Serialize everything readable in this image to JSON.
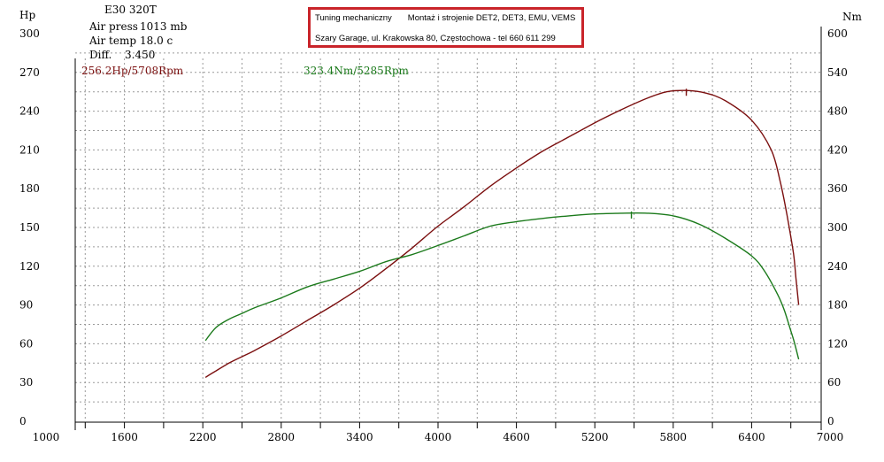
{
  "header": {
    "model": "E30 320T",
    "air_press_label": "Air press",
    "air_press_value": "1013 mb",
    "air_temp_label": "Air temp",
    "air_temp_value": "18.0 c",
    "diff_label": "Diff.",
    "diff_value": "3.450"
  },
  "shop_box": {
    "line1_a": "Tuning mechaniczny",
    "line1_b": "Montaż i strojenie DET2, DET3, EMU, VEMS",
    "line2": "Szary Garage, ul. Krakowska 80, Częstochowa - tel 660 611 299",
    "border_color": "#c9242a"
  },
  "colors": {
    "power": "#7b0f0f",
    "torque": "#1b7a1b",
    "grid": "#9a9a9a"
  },
  "chart_data": {
    "type": "line",
    "x_ticks": [
      "1000",
      "1600",
      "2200",
      "2800",
      "3400",
      "4000",
      "4600",
      "5200",
      "5800",
      "6400",
      "7000"
    ],
    "xlim": [
      1000,
      7000
    ],
    "y_left": {
      "label": "Hp",
      "ticks": [
        "0",
        "30",
        "60",
        "90",
        "120",
        "150",
        "180",
        "210",
        "240",
        "270",
        "300"
      ],
      "lim": [
        0,
        300
      ]
    },
    "y_right": {
      "label": "Nm",
      "ticks": [
        "0",
        "60",
        "120",
        "180",
        "240",
        "300",
        "360",
        "420",
        "480",
        "540",
        "600"
      ],
      "lim": [
        0,
        600
      ]
    },
    "grid": true,
    "peaks": {
      "power": "256.2Hp/5708Rpm",
      "torque": "323.4Nm/5285Rpm"
    },
    "series": [
      {
        "axis": "left",
        "x": [
          2220,
          2300,
          2400,
          2500,
          2600,
          2800,
          3000,
          3200,
          3400,
          3600,
          3800,
          4000,
          4200,
          4400,
          4600,
          4800,
          5000,
          5200,
          5400,
          5600,
          5750,
          5900,
          6050,
          6200,
          6400,
          6550,
          6620,
          6670,
          6720,
          6740,
          6760
        ],
        "values": [
          34,
          39,
          45,
          50,
          55,
          66,
          78,
          90,
          103,
          118,
          134,
          151,
          166,
          182,
          196,
          209,
          220,
          231,
          241,
          250,
          255,
          256,
          254,
          248,
          233,
          210,
          185,
          160,
          130,
          110,
          90
        ]
      },
      {
        "axis": "right",
        "x": [
          2220,
          2300,
          2400,
          2500,
          2600,
          2800,
          3000,
          3200,
          3400,
          3600,
          3800,
          4000,
          4200,
          4400,
          4600,
          4800,
          5000,
          5200,
          5400,
          5600,
          5800,
          6000,
          6200,
          6400,
          6500,
          6600,
          6650,
          6700,
          6730,
          6760
        ],
        "values": [
          125,
          145,
          158,
          167,
          176,
          191,
          208,
          220,
          232,
          247,
          258,
          272,
          287,
          302,
          309,
          314,
          318,
          321,
          322,
          322,
          318,
          305,
          283,
          256,
          232,
          196,
          172,
          140,
          120,
          96
        ]
      }
    ]
  }
}
